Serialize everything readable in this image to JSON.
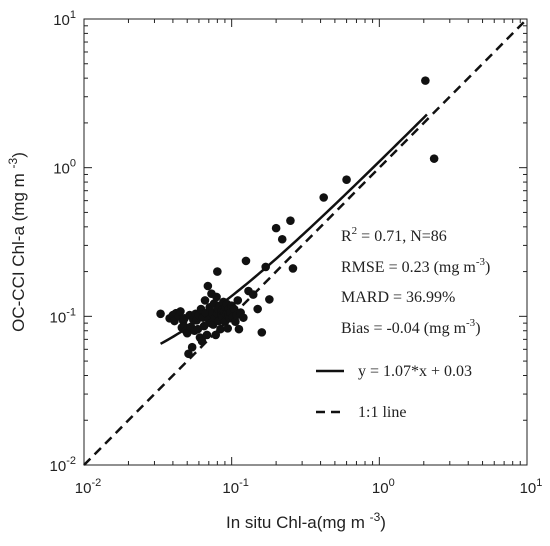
{
  "chart_data": {
    "type": "scatter",
    "title": "",
    "xlabel": "In situ Chl-a (mg m⁻³)",
    "ylabel": "OC-CCI Chl-a (mg m⁻³)",
    "xscale": "log",
    "yscale": "log",
    "xlim": [
      0.01,
      10
    ],
    "ylim": [
      0.01,
      10
    ],
    "grid": false,
    "xticks": [
      {
        "value": 0.01,
        "base": "10",
        "exp": "-2"
      },
      {
        "value": 0.1,
        "base": "10",
        "exp": "-1"
      },
      {
        "value": 1,
        "base": "10",
        "exp": "0"
      },
      {
        "value": 10,
        "base": "10",
        "exp": "1"
      }
    ],
    "yticks": [
      {
        "value": 0.01,
        "base": "10",
        "exp": "-2"
      },
      {
        "value": 0.1,
        "base": "10",
        "exp": "-1"
      },
      {
        "value": 1,
        "base": "10",
        "exp": "0"
      },
      {
        "value": 10,
        "base": "10",
        "exp": "1"
      }
    ],
    "points": [
      [
        0.033,
        0.104
      ],
      [
        0.038,
        0.097
      ],
      [
        0.04,
        0.102
      ],
      [
        0.041,
        0.093
      ],
      [
        0.042,
        0.105
      ],
      [
        0.044,
        0.1
      ],
      [
        0.045,
        0.108
      ],
      [
        0.046,
        0.084
      ],
      [
        0.047,
        0.093
      ],
      [
        0.048,
        0.097
      ],
      [
        0.048,
        0.085
      ],
      [
        0.049,
        0.08
      ],
      [
        0.05,
        0.077
      ],
      [
        0.051,
        0.056
      ],
      [
        0.052,
        0.102
      ],
      [
        0.053,
        0.085
      ],
      [
        0.054,
        0.062
      ],
      [
        0.055,
        0.095
      ],
      [
        0.056,
        0.08
      ],
      [
        0.057,
        0.104
      ],
      [
        0.058,
        0.094
      ],
      [
        0.059,
        0.082
      ],
      [
        0.06,
        0.102
      ],
      [
        0.061,
        0.072
      ],
      [
        0.062,
        0.112
      ],
      [
        0.063,
        0.068
      ],
      [
        0.064,
        0.098
      ],
      [
        0.065,
        0.086
      ],
      [
        0.066,
        0.128
      ],
      [
        0.067,
        0.105
      ],
      [
        0.068,
        0.075
      ],
      [
        0.069,
        0.16
      ],
      [
        0.07,
        0.095
      ],
      [
        0.071,
        0.115
      ],
      [
        0.072,
        0.09
      ],
      [
        0.073,
        0.142
      ],
      [
        0.074,
        0.104
      ],
      [
        0.075,
        0.088
      ],
      [
        0.076,
        0.122
      ],
      [
        0.077,
        0.098
      ],
      [
        0.078,
        0.075
      ],
      [
        0.079,
        0.135
      ],
      [
        0.08,
        0.105
      ],
      [
        0.08,
        0.2
      ],
      [
        0.081,
        0.112
      ],
      [
        0.082,
        0.093
      ],
      [
        0.083,
        0.118
      ],
      [
        0.084,
        0.082
      ],
      [
        0.085,
        0.102
      ],
      [
        0.086,
        0.11
      ],
      [
        0.087,
        0.098
      ],
      [
        0.088,
        0.125
      ],
      [
        0.089,
        0.108
      ],
      [
        0.09,
        0.092
      ],
      [
        0.091,
        0.115
      ],
      [
        0.092,
        0.103
      ],
      [
        0.093,
        0.121
      ],
      [
        0.094,
        0.083
      ],
      [
        0.095,
        0.102
      ],
      [
        0.096,
        0.112
      ],
      [
        0.097,
        0.097
      ],
      [
        0.098,
        0.106
      ],
      [
        0.1,
        0.118
      ],
      [
        0.102,
        0.099
      ],
      [
        0.104,
        0.112
      ],
      [
        0.106,
        0.092
      ],
      [
        0.108,
        0.102
      ],
      [
        0.11,
        0.128
      ],
      [
        0.112,
        0.082
      ],
      [
        0.115,
        0.106
      ],
      [
        0.12,
        0.098
      ],
      [
        0.125,
        0.236
      ],
      [
        0.13,
        0.148
      ],
      [
        0.14,
        0.14
      ],
      [
        0.15,
        0.112
      ],
      [
        0.16,
        0.078
      ],
      [
        0.17,
        0.215
      ],
      [
        0.18,
        0.13
      ],
      [
        0.2,
        0.392
      ],
      [
        0.22,
        0.33
      ],
      [
        0.25,
        0.44
      ],
      [
        0.26,
        0.21
      ],
      [
        0.42,
        0.63
      ],
      [
        0.6,
        0.83
      ],
      [
        2.05,
        3.85
      ],
      [
        2.35,
        1.15
      ]
    ],
    "fit": {
      "slope": 1.07,
      "intercept": 0.03,
      "x_range": [
        0.033,
        2.1
      ]
    },
    "one_to_one": {
      "x_range": [
        0.01,
        10
      ]
    },
    "annotations": [
      {
        "label": "R",
        "sup": "2",
        "after": " = 0.71, N=86"
      },
      {
        "label": "RMSE = 0.23 (mg m",
        "sup": "-3",
        "after": ")"
      },
      {
        "label": "MARD = 36.99%",
        "sup": "",
        "after": ""
      },
      {
        "label": "Bias = -0.04 (mg m",
        "sup": "-3",
        "after": ")"
      }
    ],
    "legend": {
      "placement": "lower-right",
      "entries": [
        {
          "label": "y = 1.07*x + 0.03",
          "style": "solid"
        },
        {
          "label": "1:1 line",
          "style": "dashed"
        }
      ]
    }
  }
}
